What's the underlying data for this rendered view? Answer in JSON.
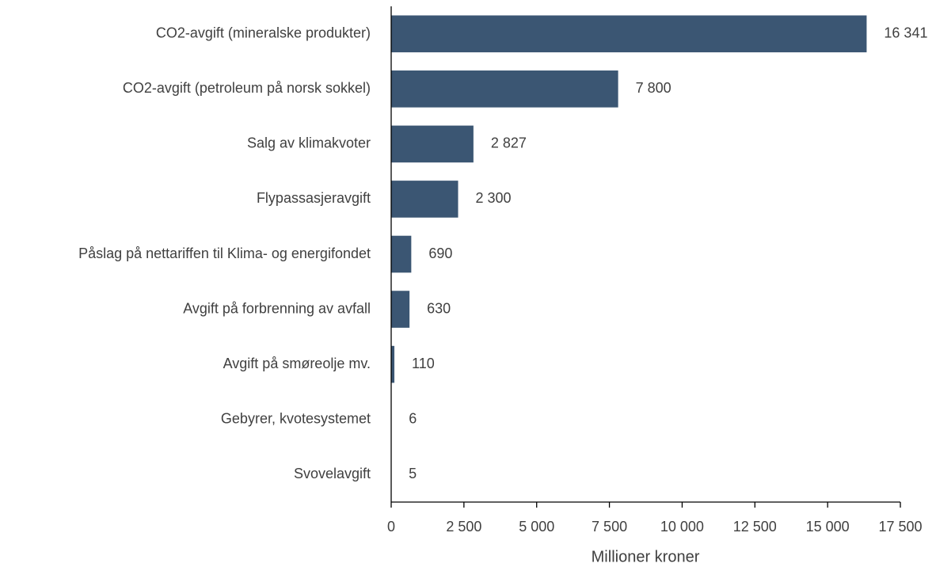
{
  "chart_data": {
    "type": "barh",
    "categories": [
      "CO2-avgift (mineralske produkter)",
      "CO2-avgift (petroleum på norsk sokkel)",
      "Salg av klimakvoter",
      "Flypassasjeravgift",
      "Påslag på nettariffen til Klima- og energifondet",
      "Avgift på forbrenning av avfall",
      "Avgift på smøreolje mv.",
      "Gebyrer, kvotesystemet",
      "Svovelavgift"
    ],
    "values": [
      16341,
      7800,
      2827,
      2300,
      690,
      630,
      110,
      6,
      5
    ],
    "value_labels": [
      "16 341",
      "7 800",
      "2 827",
      "2 300",
      "690",
      "630",
      "110",
      "6",
      "5"
    ],
    "color": "#3b5673",
    "xlabel": "Millioner kroner",
    "xlim": [
      0,
      17500
    ],
    "xticks": [
      0,
      {
        "value": 2500,
        "label": "2 500"
      },
      {
        "value": 5000,
        "label": "5 000"
      },
      {
        "value": 7500,
        "label": "7 500"
      },
      {
        "value": 10000,
        "label": "10 000"
      },
      {
        "value": 12500,
        "label": "12 500"
      },
      {
        "value": 15000,
        "label": "15 000"
      },
      {
        "value": 17500,
        "label": "17 500"
      }
    ],
    "grid": false
  }
}
